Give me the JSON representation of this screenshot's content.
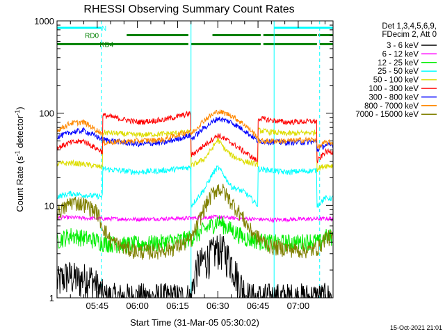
{
  "chart_data": {
    "type": "line",
    "title": "RHESSI Observing Summary Count Rates",
    "xlabel": "Start Time (31-Mar-05 05:30:02)",
    "ylabel_parts": [
      "Count Rate (s",
      "-1",
      " detector",
      "-1",
      ")"
    ],
    "y_scale": "log",
    "ylim": [
      1,
      1000
    ],
    "y_ticks": [
      1,
      10,
      100,
      1000
    ],
    "y_tick_labels": [
      "1",
      "10",
      "100",
      "1000"
    ],
    "xlim_minutes": [
      0,
      103
    ],
    "x_tick_minutes": [
      15,
      30,
      45,
      60,
      75,
      90
    ],
    "x_tick_labels": [
      "05:45",
      "06:00",
      "06:15",
      "06:30",
      "06:45",
      "07:00"
    ],
    "legend_header": [
      "Det 1,3,4,5,6,9,",
      "FDecim 2, Att 0"
    ],
    "series": [
      {
        "name": "3 - 6 keV",
        "color": "#000000",
        "t": [
          0,
          4,
          8,
          12,
          14,
          16,
          18,
          50,
          52,
          55,
          60,
          62,
          65,
          68,
          70,
          72,
          74,
          76
        ],
        "y": [
          1.5,
          1.8,
          1.6,
          1.7,
          1.5,
          1.2,
          1,
          1,
          2.2,
          2.6,
          3.5,
          3.3,
          2.5,
          1.5,
          1.2,
          1,
          1,
          1
        ]
      },
      {
        "name": "6 - 12 keV",
        "color": "#ff00ff",
        "t": [
          0,
          10,
          17,
          30,
          40,
          50,
          60,
          70,
          80,
          90,
          100
        ],
        "y": [
          7.5,
          7.3,
          7.2,
          7.1,
          7.2,
          7.3,
          7.5,
          7.2,
          7.0,
          7.1,
          7.2
        ]
      },
      {
        "name": "12 - 25 keV",
        "color": "#00ee00",
        "t": [
          0,
          5,
          10,
          15,
          17,
          25,
          35,
          45,
          50,
          55,
          60,
          65,
          70,
          75,
          80,
          90,
          95,
          98,
          100
        ],
        "y": [
          4.2,
          4.8,
          4.5,
          4.2,
          4.0,
          3.8,
          3.9,
          4.2,
          4.5,
          5.5,
          6.8,
          5.5,
          4.5,
          4.2,
          4.0,
          4.0,
          4.2,
          4.0,
          4.6
        ]
      },
      {
        "name": "25 - 50 keV",
        "color": "#00ffff",
        "t": [
          0,
          5,
          10,
          17,
          17.1,
          30,
          40,
          50,
          50.1,
          55,
          58,
          60,
          62,
          65,
          70,
          75,
          75.1,
          85,
          97,
          97.1,
          100
        ],
        "y": [
          12.5,
          13.5,
          13.0,
          12.5,
          25,
          23,
          24,
          26,
          10,
          15,
          22,
          26,
          22,
          16,
          14,
          10,
          25,
          23,
          24,
          10,
          12
        ]
      },
      {
        "name": "50 - 100 keV",
        "color": "#dddd00",
        "t": [
          0,
          5,
          10,
          17,
          17.1,
          30,
          40,
          50,
          50.1,
          55,
          58,
          60,
          62,
          65,
          70,
          75,
          75.1,
          85,
          97,
          97.1,
          100
        ],
        "y": [
          28,
          29,
          28,
          26,
          62,
          58,
          60,
          62,
          27,
          32,
          42,
          52,
          43,
          35,
          30,
          28,
          65,
          60,
          62,
          25,
          27
        ]
      },
      {
        "name": "100 - 300 keV",
        "color": "#ff0000",
        "t": [
          0,
          5,
          10,
          17,
          17.1,
          30,
          40,
          50,
          50.1,
          55,
          60,
          65,
          70,
          75,
          75.1,
          85,
          97,
          97.1,
          100
        ],
        "y": [
          42,
          48,
          50,
          38,
          95,
          80,
          85,
          100,
          35,
          45,
          58,
          48,
          38,
          30,
          88,
          80,
          82,
          30,
          38
        ]
      },
      {
        "name": "300 - 800 keV",
        "color": "#0000ff",
        "t": [
          0,
          5,
          10,
          17,
          17.1,
          30,
          40,
          50,
          50.1,
          55,
          60,
          65,
          70,
          75,
          75.1,
          85,
          97,
          97.1,
          100
        ],
        "y": [
          55,
          62,
          65,
          52,
          52,
          46,
          48,
          58,
          52,
          70,
          88,
          80,
          65,
          50,
          50,
          48,
          49,
          40,
          45
        ]
      },
      {
        "name": "800 - 7000 keV",
        "color": "#ff8800",
        "t": [
          0,
          5,
          10,
          17,
          17.1,
          30,
          40,
          50,
          50.1,
          55,
          60,
          65,
          70,
          75,
          75.1,
          85,
          97,
          97.1,
          100
        ],
        "y": [
          65,
          78,
          80,
          60,
          48,
          50,
          52,
          65,
          60,
          85,
          105,
          95,
          75,
          55,
          50,
          50,
          52,
          42,
          48
        ]
      },
      {
        "name": "7000 - 15000 keV",
        "color": "#808000",
        "t": [
          0,
          3,
          5,
          10,
          15,
          17,
          20,
          25,
          30,
          35,
          40,
          45,
          50,
          52,
          55,
          58,
          60,
          62,
          65,
          68,
          72,
          75,
          80,
          90,
          95,
          98,
          100
        ],
        "y": [
          8.5,
          9.5,
          11,
          10.5,
          8.5,
          6,
          4.2,
          3.5,
          3.2,
          3.2,
          3.3,
          3.6,
          4.3,
          5.8,
          9.5,
          13.5,
          15.5,
          14.5,
          11,
          8.5,
          5.5,
          4.5,
          3.6,
          3.3,
          3.3,
          3.6,
          4.5
        ]
      }
    ],
    "state_bars": [
      {
        "label": "N",
        "color": "#00ffff",
        "ranges": [
          [
            0,
            16.5
          ],
          [
            81,
            103
          ]
        ],
        "level": 840,
        "label_at": 17.5
      },
      {
        "label": "RD0",
        "color": "#008000",
        "ranges": [
          [
            26,
            49
          ],
          [
            58,
            76
          ],
          [
            77,
            97
          ],
          [
            97.5,
            103
          ]
        ],
        "level": 700,
        "label_at": 13
      },
      {
        "label": "RD4",
        "color": "#008000",
        "ranges": [
          [
            0,
            17.5
          ],
          [
            17.6,
            49
          ],
          [
            50,
            76
          ],
          [
            77,
            97
          ],
          [
            98,
            103
          ]
        ],
        "level": 560,
        "label_at": 18.5
      }
    ],
    "vertical_markers": [
      {
        "t": 16.5,
        "color": "#00ffff",
        "style": "dashed"
      },
      {
        "t": 50,
        "color": "#00ffff",
        "style": "solid"
      },
      {
        "t": 81,
        "color": "#00ffff",
        "style": "solid"
      },
      {
        "t": 98,
        "color": "#00ffff",
        "style": "dashed"
      }
    ]
  },
  "footer": {
    "timestamp": "15-Oct-2021 21:01"
  }
}
